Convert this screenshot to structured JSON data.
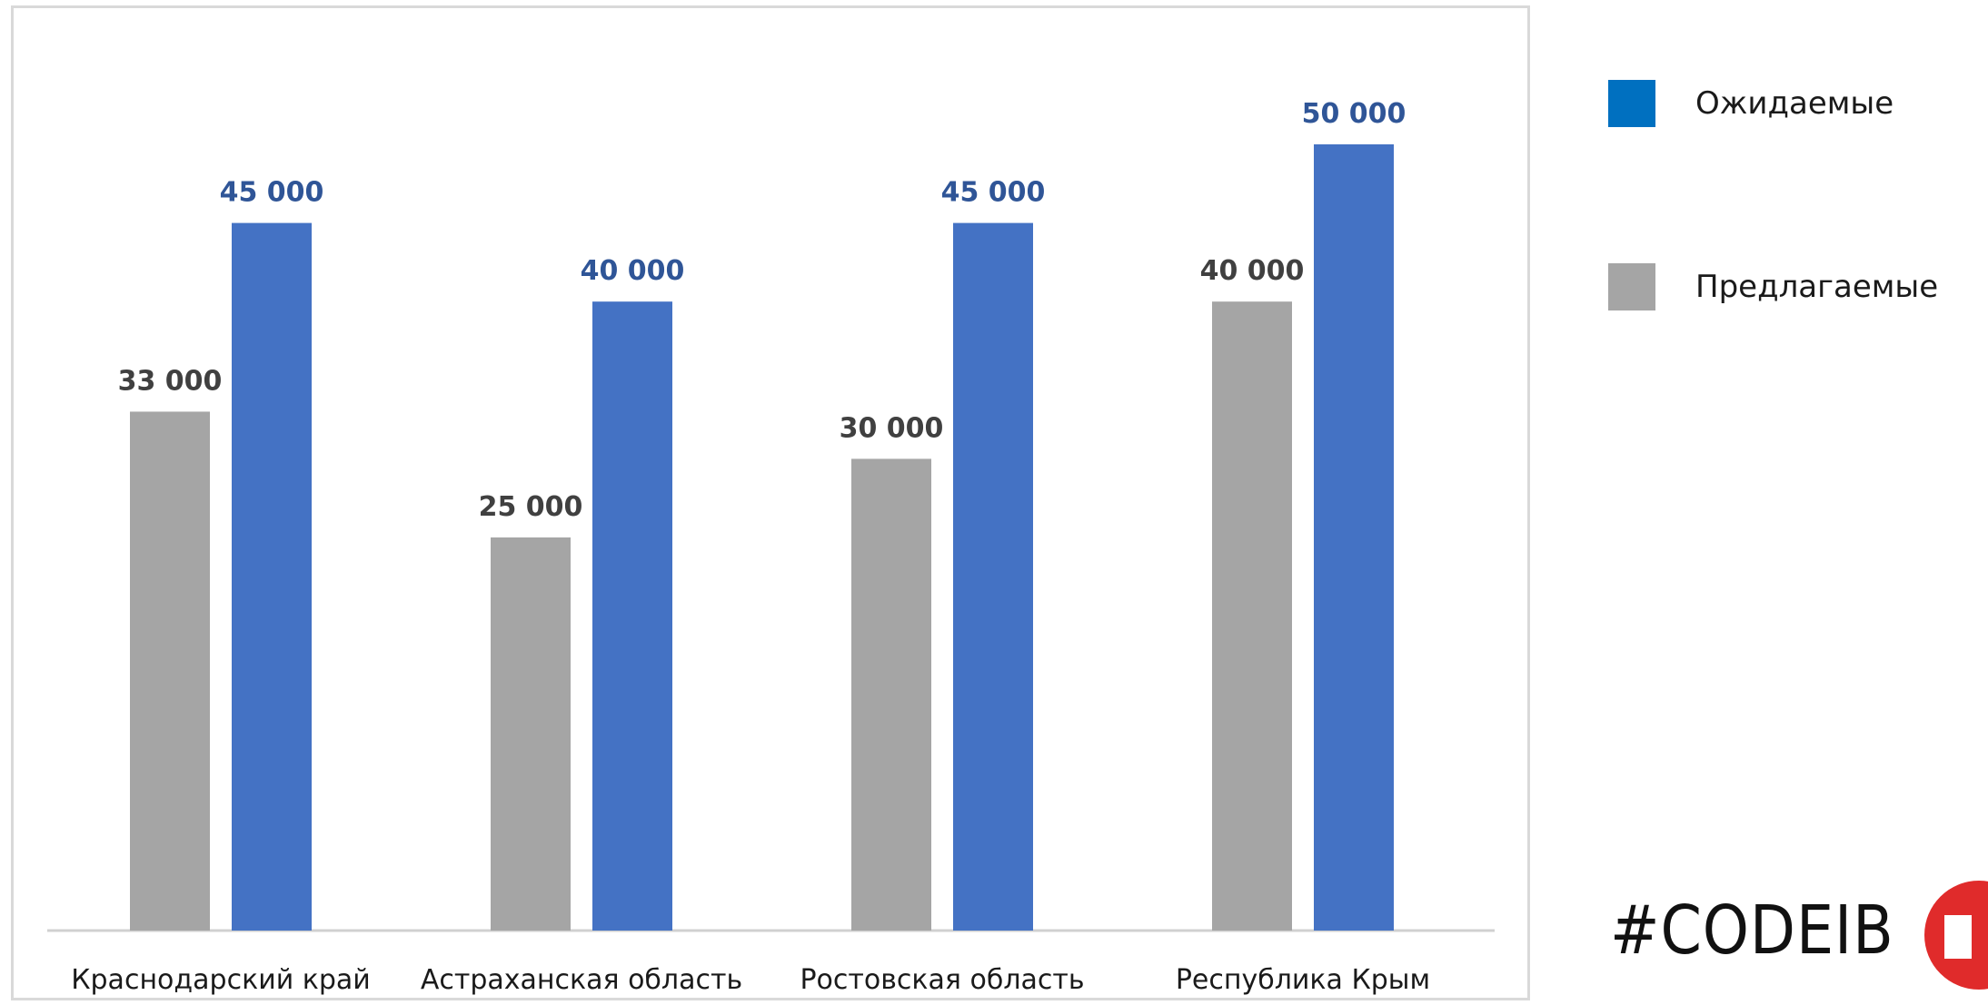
{
  "chart_data": {
    "type": "bar",
    "categories": [
      "Краснодарский край",
      "Астраханская область",
      "Ростовская область",
      "Республика Крым"
    ],
    "series": [
      {
        "name": "Предлагаемые",
        "values": [
          33000,
          25000,
          30000,
          40000
        ],
        "color": "#a5a5a5",
        "labels": [
          "33 000",
          "25 000",
          "30 000",
          "40 000"
        ]
      },
      {
        "name": "Ожидаемые",
        "values": [
          45000,
          40000,
          45000,
          50000
        ],
        "color": "#4472c4",
        "labels": [
          "45 000",
          "40 000",
          "45 000",
          "50 000"
        ]
      }
    ],
    "ylim": [
      0,
      55000
    ],
    "grid": false,
    "legend_position": "right"
  },
  "legend": {
    "items": [
      {
        "label": "Ожидаемые",
        "color": "#0070c0"
      },
      {
        "label": "Предлагаемые",
        "color": "#a5a5a5"
      }
    ]
  },
  "brand": {
    "text": "#CODEIB",
    "logo_color": "#e02b2b"
  }
}
